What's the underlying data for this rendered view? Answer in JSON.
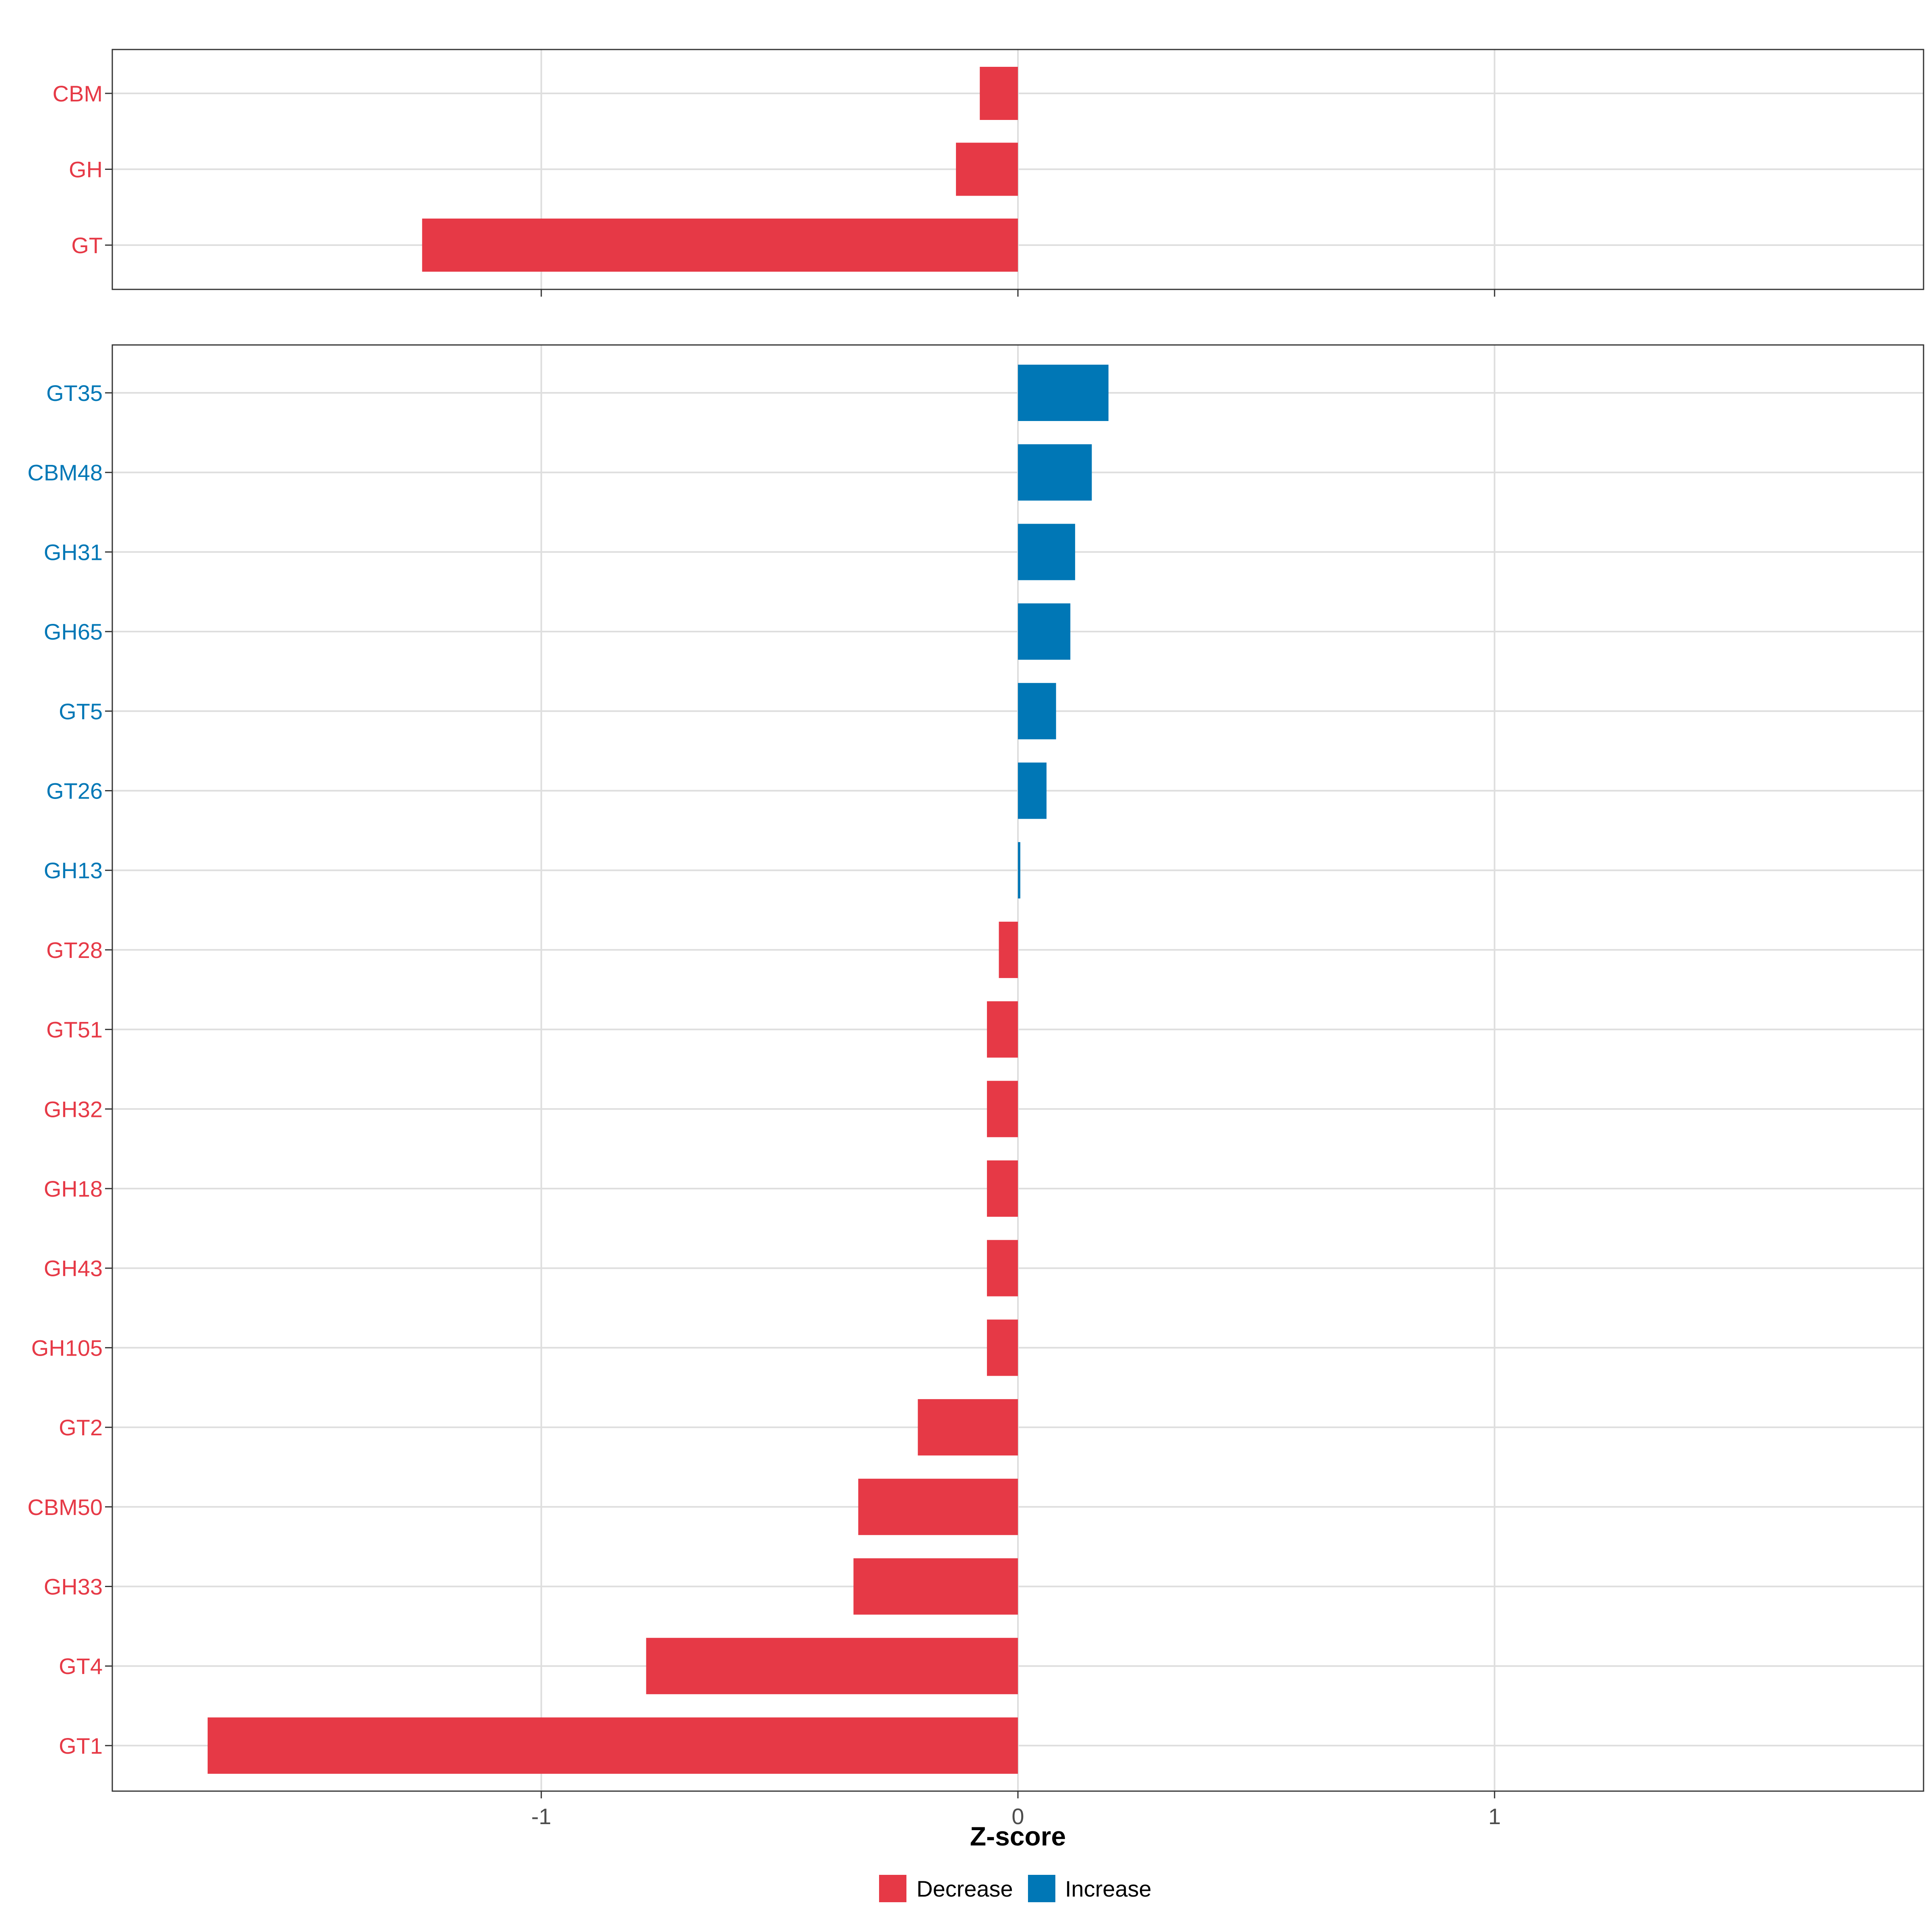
{
  "chart_data": {
    "type": "bar",
    "orientation": "horizontal",
    "xlabel": "Z-score",
    "xlim": [
      -1.9,
      1.9
    ],
    "x_ticks": [
      {
        "value": -1,
        "label": "-1"
      },
      {
        "value": 0,
        "label": "0"
      },
      {
        "value": 1,
        "label": "1"
      }
    ],
    "colors": {
      "Decrease": "#e63946",
      "Increase": "#0077b6"
    },
    "legend": {
      "position": "bottom",
      "entries": [
        {
          "key": "Decrease",
          "label": "Decrease"
        },
        {
          "key": "Increase",
          "label": "Increase"
        }
      ]
    },
    "panels": [
      {
        "name": "top",
        "bars": [
          {
            "category": "CBM",
            "value": -0.08,
            "group": "Decrease"
          },
          {
            "category": "GH",
            "value": -0.13,
            "group": "Decrease"
          },
          {
            "category": "GT",
            "value": -1.25,
            "group": "Decrease"
          }
        ]
      },
      {
        "name": "bottom",
        "bars": [
          {
            "category": "GT35",
            "value": 0.19,
            "group": "Increase"
          },
          {
            "category": "CBM48",
            "value": 0.155,
            "group": "Increase"
          },
          {
            "category": "GH31",
            "value": 0.12,
            "group": "Increase"
          },
          {
            "category": "GH65",
            "value": 0.11,
            "group": "Increase"
          },
          {
            "category": "GT5",
            "value": 0.08,
            "group": "Increase"
          },
          {
            "category": "GT26",
            "value": 0.06,
            "group": "Increase"
          },
          {
            "category": "GH13",
            "value": 0.005,
            "group": "Increase"
          },
          {
            "category": "GT28",
            "value": -0.04,
            "group": "Decrease"
          },
          {
            "category": "GT51",
            "value": -0.065,
            "group": "Decrease"
          },
          {
            "category": "GH32",
            "value": -0.065,
            "group": "Decrease"
          },
          {
            "category": "GH18",
            "value": -0.065,
            "group": "Decrease"
          },
          {
            "category": "GH43",
            "value": -0.065,
            "group": "Decrease"
          },
          {
            "category": "GH105",
            "value": -0.065,
            "group": "Decrease"
          },
          {
            "category": "GT2",
            "value": -0.21,
            "group": "Decrease"
          },
          {
            "category": "CBM50",
            "value": -0.335,
            "group": "Decrease"
          },
          {
            "category": "GH33",
            "value": -0.345,
            "group": "Decrease"
          },
          {
            "category": "GT4",
            "value": -0.78,
            "group": "Decrease"
          },
          {
            "category": "GT1",
            "value": -1.7,
            "group": "Decrease"
          }
        ]
      }
    ]
  }
}
